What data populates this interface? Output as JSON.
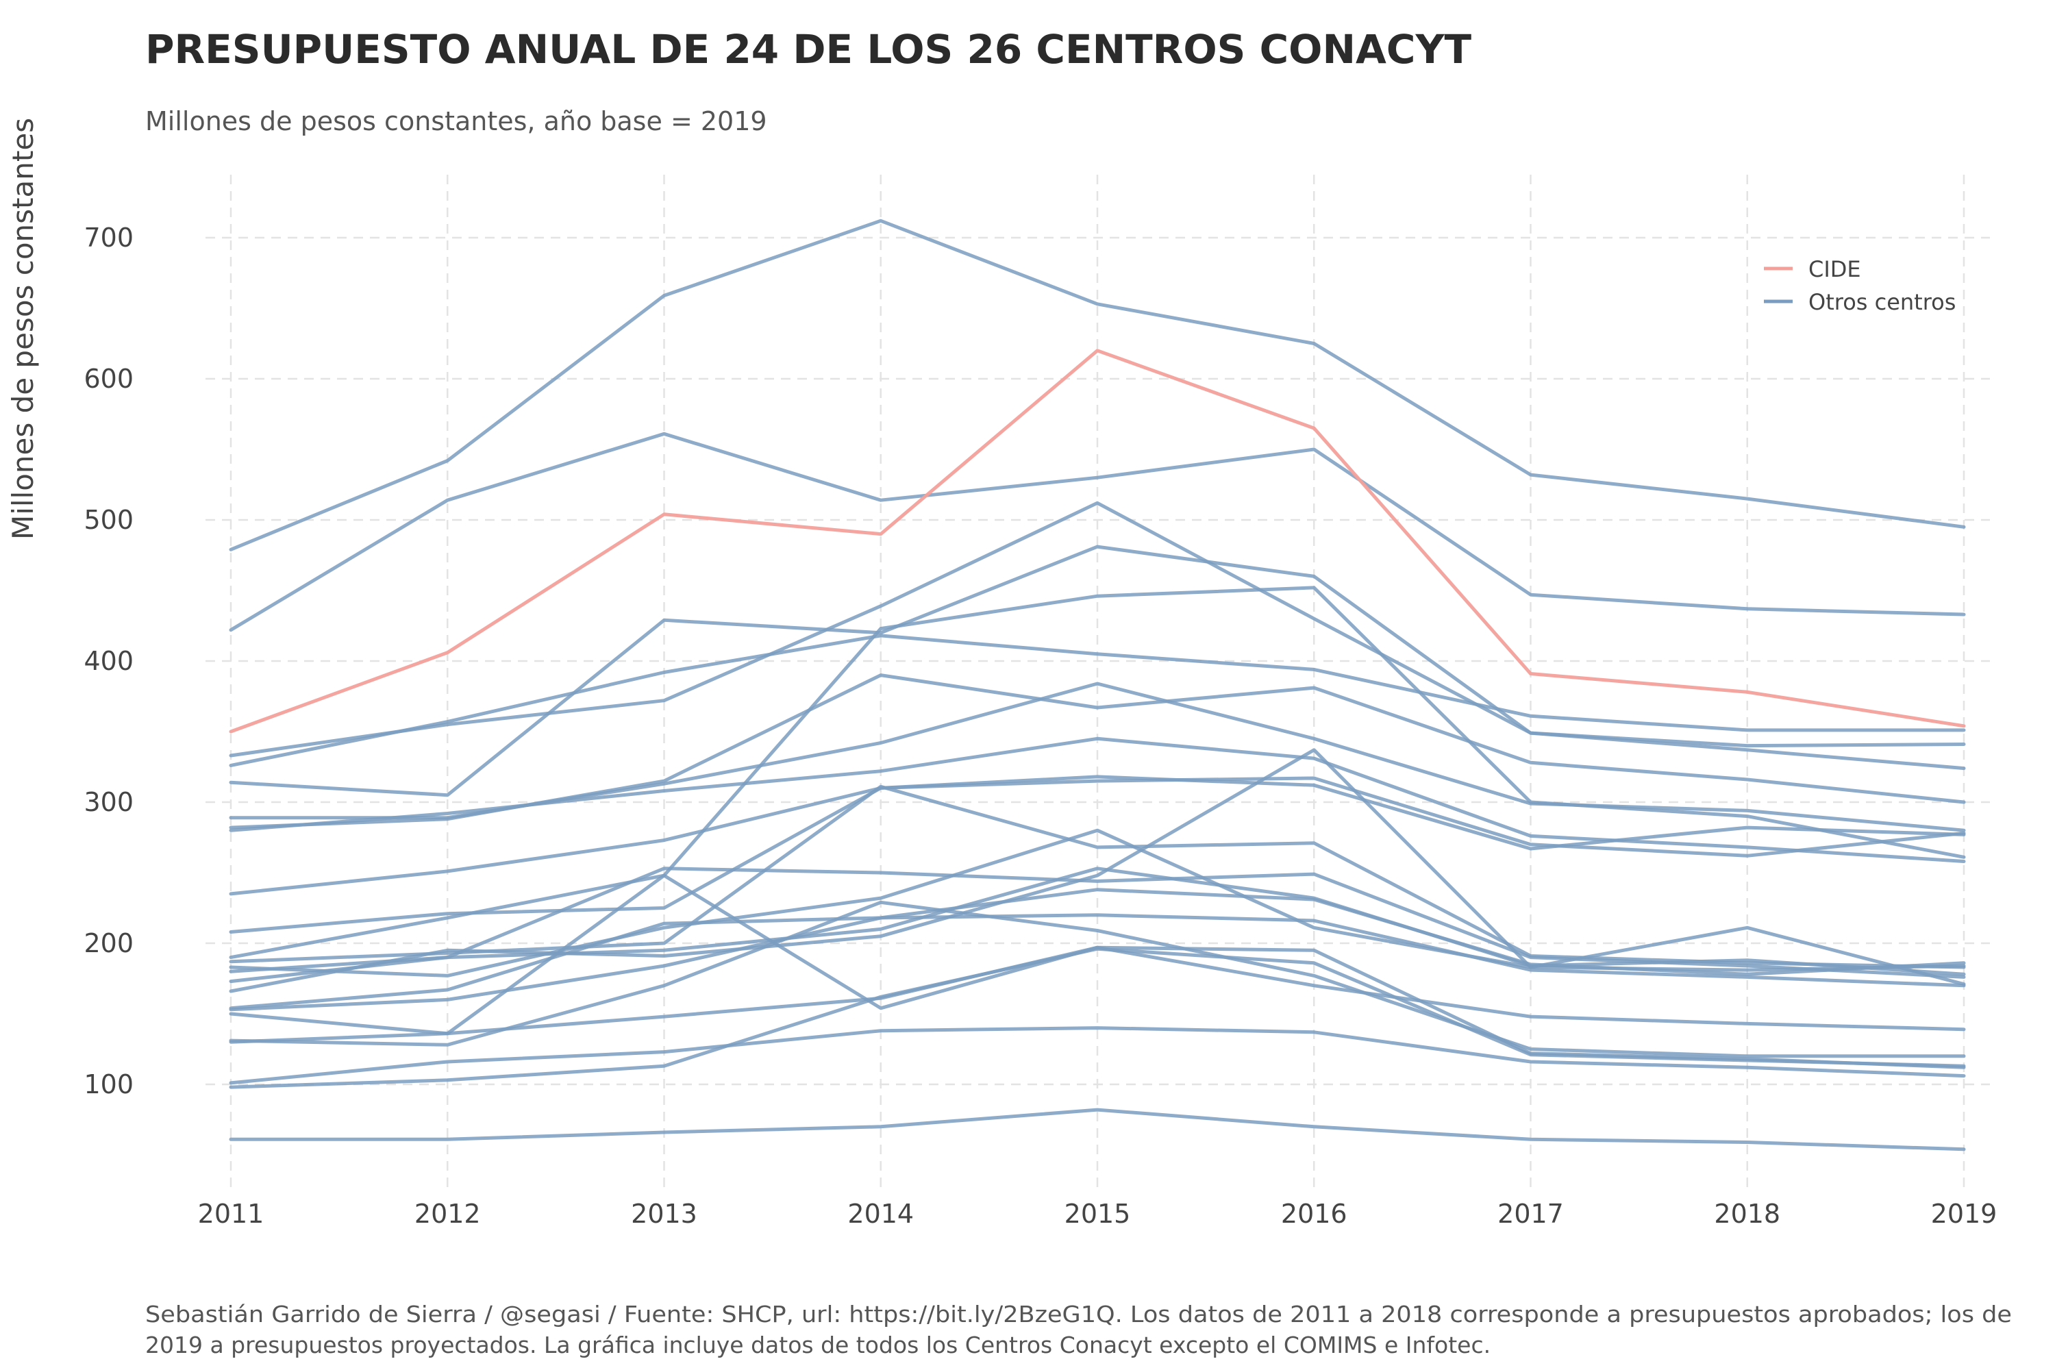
{
  "chart_data": {
    "type": "line",
    "title": "PRESUPUESTO ANUAL DE 24 DE LOS 26 CENTROS CONACYT",
    "subtitle": "Millones de pesos constantes, año base = 2019",
    "xlabel": "",
    "ylabel": "Millones de pesos constantes",
    "x": [
      2011,
      2012,
      2013,
      2014,
      2015,
      2016,
      2017,
      2018,
      2019
    ],
    "xticks": [
      "2011",
      "2012",
      "2013",
      "2014",
      "2015",
      "2016",
      "2017",
      "2018",
      "2019"
    ],
    "yticks": [
      "100",
      "200",
      "300",
      "400",
      "500",
      "600",
      "700"
    ],
    "ytick_values": [
      100,
      200,
      300,
      400,
      500,
      600,
      700
    ],
    "ylim": [
      25,
      745
    ],
    "grid": true,
    "legend_position": "top-right",
    "legend": [
      {
        "label": "CIDE",
        "color": "#f4a09a"
      },
      {
        "label": "Otros centros",
        "color": "#7a9cc0"
      }
    ],
    "series": [
      {
        "name": "CIDE",
        "group": "CIDE",
        "values": [
          350,
          406,
          504,
          490,
          620,
          565,
          391,
          378,
          354
        ]
      },
      {
        "group": "Otros centros",
        "values": [
          479,
          542,
          659,
          712,
          653,
          625,
          532,
          515,
          495
        ]
      },
      {
        "group": "Otros centros",
        "values": [
          422,
          514,
          561,
          514,
          530,
          550,
          447,
          437,
          433
        ]
      },
      {
        "group": "Otros centros",
        "values": [
          333,
          355,
          372,
          439,
          512,
          430,
          349,
          340,
          341
        ]
      },
      {
        "group": "Otros centros",
        "values": [
          326,
          357,
          392,
          418,
          405,
          394,
          361,
          351,
          351
        ]
      },
      {
        "group": "Otros centros",
        "values": [
          314,
          305,
          429,
          420,
          481,
          460,
          349,
          337,
          324
        ]
      },
      {
        "group": "Otros centros",
        "values": [
          289,
          289,
          313,
          342,
          384,
          345,
          299,
          294,
          280
        ]
      },
      {
        "group": "Otros centros",
        "values": [
          282,
          288,
          315,
          390,
          367,
          381,
          328,
          316,
          300
        ]
      },
      {
        "group": "Otros centros",
        "values": [
          280,
          292,
          308,
          322,
          345,
          331,
          276,
          268,
          258
        ]
      },
      {
        "group": "Otros centros",
        "values": [
          235,
          251,
          273,
          310,
          315,
          317,
          270,
          262,
          278
        ]
      },
      {
        "group": "Otros centros",
        "values": [
          208,
          221,
          225,
          310,
          318,
          312,
          267,
          282,
          277
        ]
      },
      {
        "group": "Otros centros",
        "values": [
          190,
          218,
          248,
          423,
          446,
          452,
          300,
          290,
          261
        ]
      },
      {
        "group": "Otros centros",
        "values": [
          187,
          193,
          200,
          311,
          268,
          271,
          191,
          186,
          183
        ]
      },
      {
        "group": "Otros centros",
        "values": [
          183,
          177,
          211,
          232,
          280,
          211,
          183,
          181,
          184
        ]
      },
      {
        "group": "Otros centros",
        "values": [
          180,
          190,
          253,
          250,
          244,
          249,
          190,
          184,
          176
        ]
      },
      {
        "group": "Otros centros",
        "values": [
          173,
          190,
          195,
          210,
          253,
          232,
          184,
          188,
          178
        ]
      },
      {
        "group": "Otros centros",
        "values": [
          166,
          195,
          191,
          205,
          248,
          337,
          183,
          211,
          171
        ]
      },
      {
        "group": "Otros centros",
        "values": [
          153,
          160,
          184,
          218,
          220,
          216,
          181,
          176,
          170
        ]
      },
      {
        "group": "Otros centros",
        "values": [
          154,
          167,
          214,
          218,
          238,
          231,
          185,
          178,
          186
        ]
      },
      {
        "group": "Otros centros",
        "values": [
          130,
          136,
          148,
          161,
          197,
          170,
          148,
          143,
          139
        ]
      },
      {
        "group": "Otros centros",
        "values": [
          131,
          128,
          170,
          229,
          209,
          177,
          125,
          120,
          120
        ]
      },
      {
        "group": "Otros centros",
        "values": [
          150,
          136,
          248,
          154,
          197,
          195,
          122,
          118,
          112
        ]
      },
      {
        "group": "Otros centros",
        "values": [
          101,
          116,
          123,
          138,
          140,
          137,
          116,
          112,
          106
        ]
      },
      {
        "group": "Otros centros",
        "values": [
          98,
          103,
          113,
          162,
          196,
          186,
          121,
          117,
          113
        ]
      },
      {
        "group": "Otros centros",
        "values": [
          61,
          61,
          66,
          70,
          82,
          70,
          61,
          59,
          54
        ]
      }
    ],
    "caption_lines": [
      "Sebastián Garrido de Sierra / @segasi / Fuente: SHCP, url: https://bit.ly/2BzeG1Q. Los datos de 2011 a 2018 corresponde a presupuestos aprobados; los de",
      "2019 a presupuestos proyectados. La gráfica incluye datos de todos los Centros Conacyt excepto el COMIMS e Infotec."
    ]
  }
}
